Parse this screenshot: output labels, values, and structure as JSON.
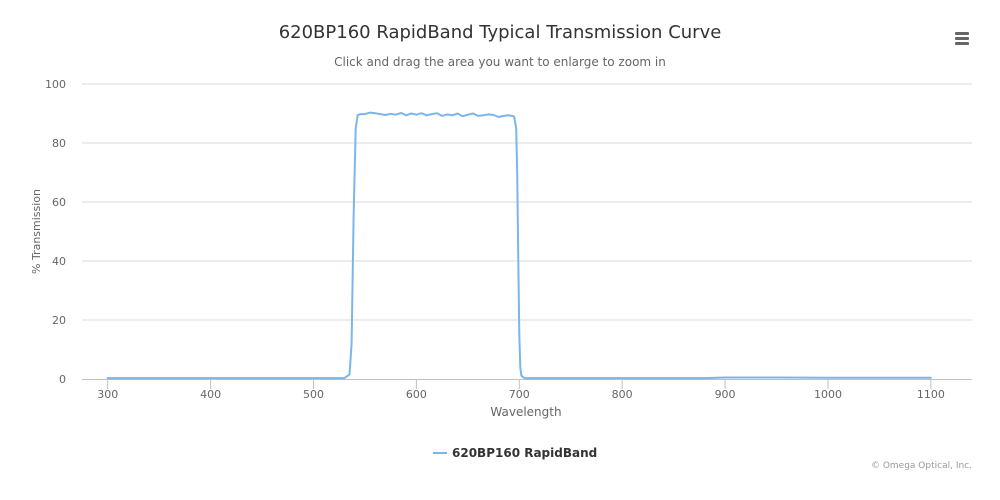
{
  "chart": {
    "title": "620BP160 RapidBand Typical Transmission Curve",
    "subtitle": "Click and drag the area you want to enlarge to zoom in",
    "credits": "© Omega Optical, Inc.",
    "menu_icon": "hamburger-menu-icon"
  },
  "chart_data": {
    "type": "line",
    "title": "620BP160 RapidBand Typical Transmission Curve",
    "xlabel": "Wavelength",
    "ylabel": "% Transmission",
    "xlim": [
      275,
      1140
    ],
    "ylim": [
      0,
      100
    ],
    "x_ticks": [
      300,
      400,
      500,
      600,
      700,
      800,
      900,
      1000,
      1100
    ],
    "y_ticks": [
      0,
      20,
      40,
      60,
      80,
      100
    ],
    "grid": true,
    "legend_position": "bottom-center",
    "series": [
      {
        "name": "620BP160 RapidBand",
        "color": "#7cb5ec",
        "x": [
          300,
          400,
          500,
          530,
          535,
          537,
          539,
          541,
          543,
          546,
          550,
          555,
          560,
          565,
          570,
          575,
          580,
          585,
          590,
          595,
          600,
          605,
          610,
          615,
          620,
          625,
          630,
          635,
          640,
          645,
          650,
          655,
          660,
          665,
          670,
          675,
          680,
          685,
          690,
          695,
          697,
          698,
          699,
          700,
          701,
          702,
          704,
          706,
          710,
          800,
          880,
          900,
          950,
          1000,
          1100
        ],
        "y": [
          0.3,
          0.3,
          0.3,
          0.3,
          1.5,
          12,
          55,
          85,
          89.5,
          89.8,
          89.8,
          90.3,
          90.1,
          89.8,
          89.5,
          89.9,
          89.6,
          90.2,
          89.4,
          90.0,
          89.6,
          90.1,
          89.4,
          89.8,
          90.1,
          89.2,
          89.7,
          89.4,
          90.0,
          89.1,
          89.6,
          90.0,
          89.2,
          89.4,
          89.7,
          89.5,
          88.8,
          89.2,
          89.4,
          89.0,
          85,
          70,
          40,
          15,
          4,
          1.2,
          0.5,
          0.3,
          0.3,
          0.3,
          0.3,
          0.5,
          0.5,
          0.4,
          0.4
        ]
      }
    ]
  }
}
